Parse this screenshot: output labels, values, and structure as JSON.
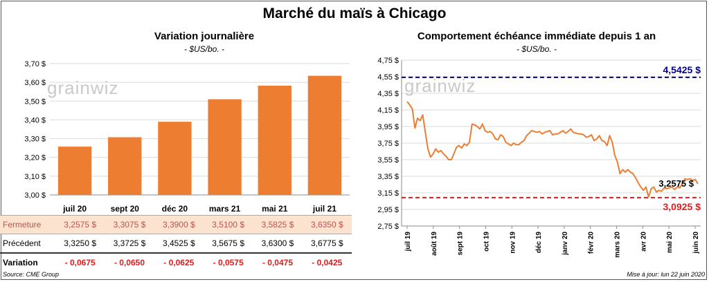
{
  "title": "Marché du maïs à Chicago",
  "chart_data": [
    {
      "type": "bar",
      "title": "Variation  journalière",
      "subtitle": "- $US/bo. -",
      "categories": [
        "juil 20",
        "sept 20",
        "déc 20",
        "mars 21",
        "mai 21",
        "juil 21"
      ],
      "values": [
        3.2575,
        3.3075,
        3.39,
        3.51,
        3.5825,
        3.635
      ],
      "ylim": [
        3.0,
        3.7
      ],
      "yticks": [
        "3,00 $",
        "3,10 $",
        "3,20 $",
        "3,30 $",
        "3,40 $",
        "3,50 $",
        "3,60 $",
        "3,70 $"
      ],
      "color": "#ED7D31"
    },
    {
      "type": "line",
      "title": "Comportement  échéance immédiate depuis 1 an",
      "subtitle": "- $US/bo. -",
      "ylim": [
        2.75,
        4.75
      ],
      "yticks": [
        "2,75 $",
        "2,95 $",
        "3,15 $",
        "3,35 $",
        "3,55 $",
        "3,75 $",
        "3,95 $",
        "4,15 $",
        "4,35 $",
        "4,55 $",
        "4,75 $"
      ],
      "xticks": [
        "juil 19",
        "août 19",
        "sept 19",
        "oct 19",
        "nov 19",
        "déc 19",
        "janv 20",
        "févr 20",
        "mars 20",
        "avr 20",
        "mai 20",
        "juin 20"
      ],
      "series": [
        {
          "color": "#ED7D31",
          "values": [
            4.25,
            4.21,
            4.16,
            3.93,
            4.05,
            4.02,
            4.09,
            3.88,
            3.68,
            3.58,
            3.62,
            3.68,
            3.64,
            3.66,
            3.62,
            3.59,
            3.55,
            3.55,
            3.62,
            3.7,
            3.72,
            3.69,
            3.74,
            3.72,
            3.76,
            3.98,
            3.97,
            3.95,
            3.92,
            3.98,
            3.9,
            3.88,
            3.89,
            3.86,
            3.8,
            3.79,
            3.85,
            3.83,
            3.76,
            3.74,
            3.72,
            3.75,
            3.73,
            3.73,
            3.76,
            3.78,
            3.84,
            3.87,
            3.9,
            3.89,
            3.88,
            3.89,
            3.86,
            3.88,
            3.89,
            3.9,
            3.85,
            3.86,
            3.86,
            3.88,
            3.9,
            3.87,
            3.89,
            3.92,
            3.88,
            3.87,
            3.86,
            3.86,
            3.85,
            3.82,
            3.83,
            3.85,
            3.78,
            3.8,
            3.84,
            3.78,
            3.77,
            3.72,
            3.84,
            3.76,
            3.6,
            3.52,
            3.38,
            3.43,
            3.4,
            3.43,
            3.4,
            3.38,
            3.33,
            3.27,
            3.22,
            3.18,
            3.22,
            3.1,
            3.2,
            3.22,
            3.16,
            3.18,
            3.17,
            3.21,
            3.2,
            3.21,
            3.22,
            3.19,
            3.22,
            3.21,
            3.26,
            3.32,
            3.31,
            3.32,
            3.3,
            3.31,
            3.2575
          ]
        }
      ],
      "reference_lines": [
        {
          "value": 4.5425,
          "label": "4,5425 $",
          "color": "#00008B"
        },
        {
          "value": 3.0925,
          "label": "3,0925 $",
          "color": "#E31A1C"
        }
      ],
      "last_value_label": "3,2575 $"
    }
  ],
  "table": {
    "rows": [
      {
        "label": "Fermeture",
        "cells": [
          "3,2575  $",
          "3,3075  $",
          "3,3900  $",
          "3,5100  $",
          "3,5825  $",
          "3,6350  $"
        ]
      },
      {
        "label": "Précédent",
        "cells": [
          "3,3250  $",
          "3,3725  $",
          "3,4525  $",
          "3,5675  $",
          "3,6300  $",
          "3,6775  $"
        ]
      },
      {
        "label": "Variation",
        "cells": [
          "- 0,0675",
          "- 0,0650",
          "- 0,0625",
          "- 0,0575",
          "- 0,0475",
          "- 0,0425"
        ]
      }
    ]
  },
  "watermark": "grainwiz",
  "footer": {
    "source": "Source: CME Group",
    "updated": "Mise à jour: lun 22 juin 2020"
  }
}
